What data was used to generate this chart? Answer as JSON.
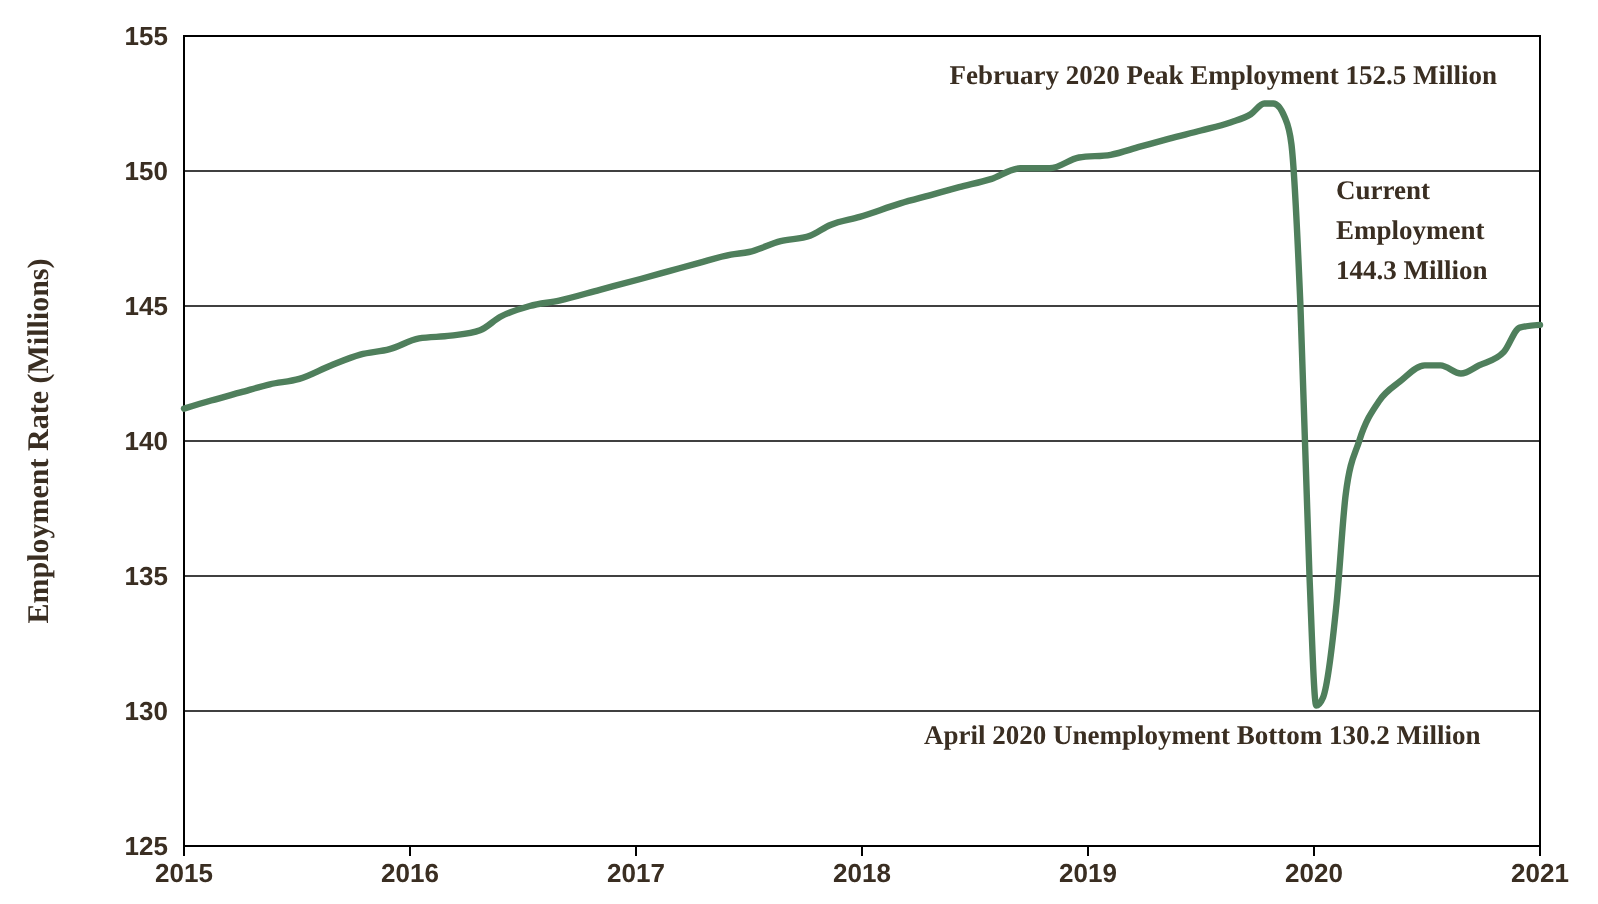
{
  "chart_data": {
    "type": "line",
    "ylabel": "Employment Rate (Millions)",
    "x": [
      2015.0,
      2015.12,
      2015.25,
      2015.38,
      2015.51,
      2015.65,
      2015.78,
      2015.91,
      2016.04,
      2016.18,
      2016.31,
      2016.4,
      2016.53,
      2016.66,
      2016.84,
      2017.02,
      2017.15,
      2017.28,
      2017.42,
      2017.5,
      2017.64,
      2017.77,
      2017.86,
      2017.99,
      2018.17,
      2018.3,
      2018.43,
      2018.57,
      2018.7,
      2018.83,
      2018.96,
      2019.1,
      2019.23,
      2019.36,
      2019.5,
      2019.63,
      2019.72,
      2019.78,
      2019.82,
      2019.87,
      2019.9,
      2019.94,
      2019.98,
      2020.01,
      2020.04,
      2020.1,
      2020.14,
      2020.2,
      2020.29,
      2020.38,
      2020.49,
      2020.56,
      2020.65,
      2020.73,
      2020.84,
      2020.91,
      2021.0
    ],
    "series": [
      {
        "color": "#4f7f5c",
        "values": [
          141.2,
          141.5,
          141.8,
          142.1,
          142.3,
          142.8,
          143.2,
          143.4,
          143.8,
          143.9,
          144.1,
          144.6,
          145.0,
          145.2,
          145.6,
          146.0,
          146.3,
          146.6,
          146.9,
          147.0,
          147.4,
          147.6,
          148.0,
          148.3,
          148.8,
          149.1,
          149.4,
          149.7,
          150.1,
          150.1,
          150.5,
          150.6,
          150.9,
          151.2,
          151.5,
          151.8,
          152.1,
          152.5,
          152.5,
          152.0,
          151.0,
          145.0,
          135.0,
          130.2,
          130.5,
          134.0,
          138.0,
          140.0,
          141.5,
          142.2,
          142.8,
          142.8,
          142.5,
          142.8,
          143.3,
          144.2,
          144.3
        ]
      }
    ],
    "xlim": [
      2015,
      2021
    ],
    "xticks": [
      2015,
      2016,
      2017,
      2018,
      2019,
      2020,
      2021
    ],
    "ylim": [
      125,
      155
    ],
    "yticks": [
      125,
      130,
      135,
      140,
      145,
      150,
      155
    ],
    "grid": "y",
    "marker": "none",
    "line_style": "solid",
    "annotations": [
      {
        "text": "February 2020 Peak Employment 152.5 Million",
        "x": 2019.82,
        "y": 152.5
      },
      {
        "text": "April 2020 Unemployment Bottom 130.2 Million",
        "x": 2020.01,
        "y": 130.2
      },
      "Current Employment 144.3 Million"
    ]
  }
}
